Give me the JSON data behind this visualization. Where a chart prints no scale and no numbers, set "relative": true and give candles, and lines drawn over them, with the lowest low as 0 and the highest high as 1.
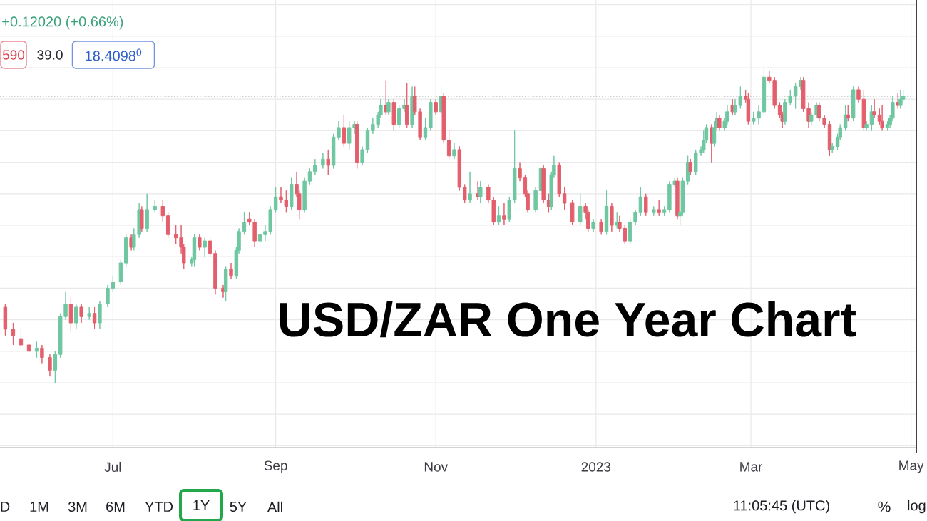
{
  "chart_data": {
    "type": "candlestick",
    "title": "USD/ZAR One Year Chart",
    "relative": true,
    "grid": true,
    "xlim": [
      "2022-05-19",
      "2023-05-03"
    ],
    "xticks": [
      {
        "value": "2022-07-01",
        "label": "Jul"
      },
      {
        "value": "2022-09-01",
        "label": "Sep"
      },
      {
        "value": "2022-11-01",
        "label": "Nov"
      },
      {
        "value": "2023-01-01",
        "label": "2023"
      },
      {
        "value": "2023-03-01",
        "label": "Mar"
      },
      {
        "value": "2023-05-01",
        "label": "May"
      }
    ],
    "x": [
      "2022-05-21",
      "2022-05-24",
      "2022-05-27",
      "2022-05-30",
      "2022-06-02",
      "2022-06-04",
      "2022-06-07",
      "2022-06-09",
      "2022-06-11",
      "2022-06-13",
      "2022-06-15",
      "2022-06-17",
      "2022-06-19",
      "2022-06-22",
      "2022-06-24",
      "2022-06-26",
      "2022-06-29",
      "2022-07-01",
      "2022-07-04",
      "2022-07-06",
      "2022-07-08",
      "2022-07-09",
      "2022-07-11",
      "2022-07-12",
      "2022-07-14",
      "2022-07-17",
      "2022-07-20",
      "2022-07-22",
      "2022-07-25",
      "2022-07-27",
      "2022-07-28",
      "2022-07-31",
      "2022-08-01",
      "2022-08-03",
      "2022-08-05",
      "2022-08-07",
      "2022-08-09",
      "2022-08-12",
      "2022-08-13",
      "2022-08-15",
      "2022-08-17",
      "2022-08-18",
      "2022-08-20",
      "2022-08-22",
      "2022-08-24",
      "2022-08-26",
      "2022-08-28",
      "2022-08-30",
      "2022-09-01",
      "2022-09-03",
      "2022-09-05",
      "2022-09-07",
      "2022-09-09",
      "2022-09-10",
      "2022-09-12",
      "2022-09-14",
      "2022-09-16",
      "2022-09-19",
      "2022-09-21",
      "2022-09-23",
      "2022-09-25",
      "2022-09-27",
      "2022-09-29",
      "2022-10-01",
      "2022-10-02",
      "2022-10-04",
      "2022-10-06",
      "2022-10-08",
      "2022-10-10",
      "2022-10-11",
      "2022-10-13",
      "2022-10-14",
      "2022-10-16",
      "2022-10-18",
      "2022-10-20",
      "2022-10-21",
      "2022-10-23",
      "2022-10-24",
      "2022-10-26",
      "2022-10-28",
      "2022-10-30",
      "2022-11-01",
      "2022-11-03",
      "2022-11-04",
      "2022-11-06",
      "2022-11-08",
      "2022-11-10",
      "2022-11-12",
      "2022-11-14",
      "2022-11-17",
      "2022-11-18",
      "2022-11-21",
      "2022-11-23",
      "2022-11-25",
      "2022-11-27",
      "2022-11-29",
      "2022-12-01",
      "2022-12-03",
      "2022-12-05",
      "2022-12-06",
      "2022-12-09",
      "2022-12-11",
      "2022-12-12",
      "2022-12-14",
      "2022-12-15",
      "2022-12-16",
      "2022-12-18",
      "2022-12-20",
      "2022-12-23",
      "2022-12-26",
      "2022-12-28",
      "2022-12-29",
      "2022-12-31",
      "2023-01-03",
      "2023-01-05",
      "2023-01-07",
      "2023-01-09",
      "2023-01-10",
      "2023-01-12",
      "2023-01-14",
      "2023-01-16",
      "2023-01-18",
      "2023-01-20",
      "2023-01-23",
      "2023-01-25",
      "2023-01-27",
      "2023-01-29",
      "2023-01-31",
      "2023-02-01",
      "2023-02-02",
      "2023-02-03",
      "2023-02-05",
      "2023-02-06",
      "2023-02-08",
      "2023-02-10",
      "2023-02-11",
      "2023-02-12",
      "2023-02-14",
      "2023-02-15",
      "2023-02-16",
      "2023-02-17",
      "2023-02-19",
      "2023-02-20",
      "2023-02-22",
      "2023-02-23",
      "2023-02-25",
      "2023-02-27",
      "2023-02-28",
      "2023-03-02",
      "2023-03-04",
      "2023-03-06",
      "2023-03-08",
      "2023-03-10",
      "2023-03-12",
      "2023-03-13",
      "2023-03-14",
      "2023-03-16",
      "2023-03-18",
      "2023-03-20",
      "2023-03-21",
      "2023-03-23",
      "2023-03-24",
      "2023-03-26",
      "2023-03-27",
      "2023-03-29",
      "2023-03-31",
      "2023-04-01",
      "2023-04-03",
      "2023-04-04",
      "2023-04-06",
      "2023-04-07",
      "2023-04-09",
      "2023-04-11",
      "2023-04-13",
      "2023-04-14",
      "2023-04-16",
      "2023-04-17",
      "2023-04-19",
      "2023-04-20",
      "2023-04-22",
      "2023-04-23",
      "2023-04-24",
      "2023-04-26",
      "2023-04-27",
      "2023-04-28"
    ],
    "ohlc": [
      [
        0.24,
        0.25,
        0.15,
        0.17
      ],
      [
        0.17,
        0.19,
        0.12,
        0.15
      ],
      [
        0.14,
        0.17,
        0.11,
        0.12
      ],
      [
        0.12,
        0.13,
        0.08,
        0.1
      ],
      [
        0.1,
        0.13,
        0.08,
        0.11
      ],
      [
        0.11,
        0.12,
        0.06,
        0.08
      ],
      [
        0.08,
        0.09,
        0.02,
        0.04
      ],
      [
        0.04,
        0.1,
        0,
        0.09
      ],
      [
        0.09,
        0.22,
        0.08,
        0.21
      ],
      [
        0.21,
        0.29,
        0.2,
        0.25
      ],
      [
        0.25,
        0.27,
        0.16,
        0.19
      ],
      [
        0.19,
        0.25,
        0.17,
        0.24
      ],
      [
        0.24,
        0.25,
        0.19,
        0.21
      ],
      [
        0.21,
        0.24,
        0.2,
        0.22
      ],
      [
        0.22,
        0.24,
        0.17,
        0.19
      ],
      [
        0.19,
        0.26,
        0.17,
        0.25
      ],
      [
        0.25,
        0.31,
        0.24,
        0.3
      ],
      [
        0.3,
        0.34,
        0.29,
        0.32
      ],
      [
        0.32,
        0.39,
        0.31,
        0.38
      ],
      [
        0.38,
        0.47,
        0.37,
        0.46
      ],
      [
        0.46,
        0.47,
        0.42,
        0.43
      ],
      [
        0.43,
        0.49,
        0.42,
        0.47
      ],
      [
        0.47,
        0.57,
        0.46,
        0.55
      ],
      [
        0.55,
        0.56,
        0.48,
        0.49
      ],
      [
        0.49,
        0.6,
        0.48,
        0.55
      ],
      [
        0.55,
        0.58,
        0.54,
        0.56
      ],
      [
        0.56,
        0.58,
        0.51,
        0.53
      ],
      [
        0.53,
        0.54,
        0.46,
        0.47
      ],
      [
        0.47,
        0.5,
        0.44,
        0.46
      ],
      [
        0.46,
        0.5,
        0.41,
        0.43
      ],
      [
        0.43,
        0.44,
        0.36,
        0.38
      ],
      [
        0.38,
        0.4,
        0.37,
        0.39
      ],
      [
        0.39,
        0.47,
        0.37,
        0.46
      ],
      [
        0.46,
        0.47,
        0.42,
        0.43
      ],
      [
        0.43,
        0.46,
        0.4,
        0.45
      ],
      [
        0.45,
        0.46,
        0.4,
        0.41
      ],
      [
        0.41,
        0.42,
        0.28,
        0.3
      ],
      [
        0.3,
        0.31,
        0.27,
        0.29
      ],
      [
        0.29,
        0.37,
        0.26,
        0.36
      ],
      [
        0.36,
        0.38,
        0.33,
        0.34
      ],
      [
        0.34,
        0.43,
        0.33,
        0.42
      ],
      [
        0.42,
        0.49,
        0.41,
        0.48
      ],
      [
        0.48,
        0.54,
        0.47,
        0.51
      ],
      [
        0.52,
        0.54,
        0.5,
        0.51
      ],
      [
        0.51,
        0.52,
        0.43,
        0.45
      ],
      [
        0.45,
        0.48,
        0.43,
        0.47
      ],
      [
        0.47,
        0.5,
        0.45,
        0.48
      ],
      [
        0.48,
        0.56,
        0.47,
        0.55
      ],
      [
        0.55,
        0.62,
        0.54,
        0.59
      ],
      [
        0.59,
        0.62,
        0.57,
        0.58
      ],
      [
        0.58,
        0.61,
        0.54,
        0.56
      ],
      [
        0.56,
        0.65,
        0.55,
        0.63
      ],
      [
        0.63,
        0.67,
        0.59,
        0.6
      ],
      [
        0.6,
        0.61,
        0.52,
        0.55
      ],
      [
        0.55,
        0.65,
        0.54,
        0.64
      ],
      [
        0.64,
        0.68,
        0.63,
        0.67
      ],
      [
        0.67,
        0.71,
        0.66,
        0.69
      ],
      [
        0.69,
        0.73,
        0.68,
        0.71
      ],
      [
        0.71,
        0.74,
        0.66,
        0.69
      ],
      [
        0.69,
        0.79,
        0.68,
        0.78
      ],
      [
        0.78,
        0.83,
        0.77,
        0.81
      ],
      [
        0.81,
        0.85,
        0.75,
        0.76
      ],
      [
        0.76,
        0.83,
        0.74,
        0.81
      ],
      [
        0.81,
        0.83,
        0.79,
        0.82
      ],
      [
        0.82,
        0.83,
        0.68,
        0.7
      ],
      [
        0.7,
        0.75,
        0.69,
        0.74
      ],
      [
        0.74,
        0.81,
        0.73,
        0.8
      ],
      [
        0.8,
        0.84,
        0.79,
        0.82
      ],
      [
        0.82,
        0.86,
        0.81,
        0.85
      ],
      [
        0.85,
        0.9,
        0.84,
        0.88
      ],
      [
        0.88,
        0.96,
        0.85,
        0.86
      ],
      [
        0.86,
        0.9,
        0.85,
        0.89
      ],
      [
        0.89,
        0.9,
        0.8,
        0.82
      ],
      [
        0.82,
        0.88,
        0.81,
        0.87
      ],
      [
        0.87,
        0.9,
        0.86,
        0.88
      ],
      [
        0.88,
        0.95,
        0.81,
        0.82
      ],
      [
        0.82,
        0.94,
        0.81,
        0.91
      ],
      [
        0.91,
        0.94,
        0.85,
        0.86
      ],
      [
        0.86,
        0.87,
        0.77,
        0.78
      ],
      [
        0.78,
        0.84,
        0.77,
        0.81
      ],
      [
        0.81,
        0.9,
        0.8,
        0.89
      ],
      [
        0.89,
        0.9,
        0.85,
        0.86
      ],
      [
        0.86,
        0.94,
        0.85,
        0.91
      ],
      [
        0.91,
        0.92,
        0.76,
        0.77
      ],
      [
        0.77,
        0.8,
        0.71,
        0.72
      ],
      [
        0.72,
        0.76,
        0.71,
        0.74
      ],
      [
        0.74,
        0.75,
        0.61,
        0.62
      ],
      [
        0.62,
        0.63,
        0.57,
        0.58
      ],
      [
        0.58,
        0.67,
        0.57,
        0.6
      ],
      [
        0.6,
        0.64,
        0.58,
        0.59
      ],
      [
        0.59,
        0.64,
        0.57,
        0.62
      ],
      [
        0.62,
        0.63,
        0.57,
        0.58
      ],
      [
        0.58,
        0.59,
        0.5,
        0.51
      ],
      [
        0.51,
        0.56,
        0.5,
        0.53
      ],
      [
        0.53,
        0.57,
        0.5,
        0.52
      ],
      [
        0.52,
        0.59,
        0.51,
        0.58
      ],
      [
        0.58,
        0.8,
        0.57,
        0.68
      ],
      [
        0.68,
        0.7,
        0.64,
        0.65
      ],
      [
        0.65,
        0.66,
        0.59,
        0.6
      ],
      [
        0.6,
        0.61,
        0.54,
        0.55
      ],
      [
        0.55,
        0.62,
        0.54,
        0.61
      ],
      [
        0.61,
        0.73,
        0.6,
        0.68
      ],
      [
        0.68,
        0.69,
        0.57,
        0.58
      ],
      [
        0.58,
        0.6,
        0.54,
        0.56
      ],
      [
        0.56,
        0.67,
        0.55,
        0.66
      ],
      [
        0.66,
        0.72,
        0.65,
        0.69
      ],
      [
        0.69,
        0.7,
        0.59,
        0.6
      ],
      [
        0.6,
        0.62,
        0.55,
        0.57
      ],
      [
        0.57,
        0.58,
        0.5,
        0.51
      ],
      [
        0.51,
        0.6,
        0.5,
        0.56
      ],
      [
        0.56,
        0.57,
        0.52,
        0.54
      ],
      [
        0.54,
        0.55,
        0.48,
        0.49
      ],
      [
        0.49,
        0.52,
        0.48,
        0.51
      ],
      [
        0.51,
        0.52,
        0.47,
        0.48
      ],
      [
        0.48,
        0.61,
        0.47,
        0.56
      ],
      [
        0.56,
        0.57,
        0.48,
        0.5
      ],
      [
        0.5,
        0.54,
        0.49,
        0.51
      ],
      [
        0.51,
        0.53,
        0.48,
        0.49
      ],
      [
        0.49,
        0.5,
        0.44,
        0.45
      ],
      [
        0.45,
        0.52,
        0.44,
        0.51
      ],
      [
        0.51,
        0.55,
        0.5,
        0.54
      ],
      [
        0.54,
        0.62,
        0.53,
        0.59
      ],
      [
        0.59,
        0.6,
        0.53,
        0.54
      ],
      [
        0.54,
        0.56,
        0.53,
        0.55
      ],
      [
        0.55,
        0.58,
        0.53,
        0.54
      ],
      [
        0.54,
        0.56,
        0.53,
        0.55
      ],
      [
        0.55,
        0.64,
        0.54,
        0.63
      ],
      [
        0.63,
        0.65,
        0.62,
        0.64
      ],
      [
        0.64,
        0.65,
        0.52,
        0.53
      ],
      [
        0.53,
        0.55,
        0.5,
        0.54
      ],
      [
        0.54,
        0.65,
        0.53,
        0.64
      ],
      [
        0.64,
        0.72,
        0.63,
        0.7
      ],
      [
        0.7,
        0.71,
        0.66,
        0.67
      ],
      [
        0.67,
        0.74,
        0.66,
        0.73
      ],
      [
        0.73,
        0.75,
        0.72,
        0.74
      ],
      [
        0.74,
        0.8,
        0.73,
        0.77
      ],
      [
        0.77,
        0.82,
        0.76,
        0.81
      ],
      [
        0.81,
        0.82,
        0.7,
        0.76
      ],
      [
        0.76,
        0.83,
        0.75,
        0.81
      ],
      [
        0.81,
        0.86,
        0.8,
        0.84
      ],
      [
        0.84,
        0.85,
        0.8,
        0.81
      ],
      [
        0.81,
        0.84,
        0.8,
        0.83
      ],
      [
        0.83,
        0.88,
        0.82,
        0.86
      ],
      [
        0.88,
        0.9,
        0.85,
        0.86
      ],
      [
        0.86,
        0.9,
        0.85,
        0.88
      ],
      [
        0.88,
        0.94,
        0.87,
        0.91
      ],
      [
        0.91,
        0.93,
        0.89,
        0.9
      ],
      [
        0.9,
        0.92,
        0.82,
        0.83
      ],
      [
        0.83,
        0.86,
        0.82,
        0.84
      ],
      [
        0.84,
        0.88,
        0.82,
        0.86
      ],
      [
        0.86,
        1,
        0.85,
        0.97
      ],
      [
        0.97,
        0.99,
        0.95,
        0.96
      ],
      [
        0.96,
        0.97,
        0.87,
        0.88
      ],
      [
        0.88,
        0.89,
        0.84,
        0.85
      ],
      [
        0.85,
        0.86,
        0.81,
        0.83
      ],
      [
        0.83,
        0.9,
        0.82,
        0.89
      ],
      [
        0.89,
        0.93,
        0.88,
        0.91
      ],
      [
        0.91,
        0.95,
        0.87,
        0.94
      ],
      [
        0.94,
        0.97,
        0.93,
        0.96
      ],
      [
        0.96,
        0.97,
        0.86,
        0.87
      ],
      [
        0.87,
        0.89,
        0.81,
        0.83
      ],
      [
        0.83,
        0.86,
        0.82,
        0.85
      ],
      [
        0.85,
        0.89,
        0.84,
        0.88
      ],
      [
        0.88,
        0.89,
        0.83,
        0.84
      ],
      [
        0.84,
        0.85,
        0.81,
        0.82
      ],
      [
        0.82,
        0.83,
        0.72,
        0.74
      ],
      [
        0.74,
        0.76,
        0.73,
        0.75
      ],
      [
        0.75,
        0.79,
        0.74,
        0.78
      ],
      [
        0.78,
        0.82,
        0.77,
        0.81
      ],
      [
        0.81,
        0.88,
        0.8,
        0.85
      ],
      [
        0.85,
        0.88,
        0.83,
        0.84
      ],
      [
        0.84,
        0.94,
        0.83,
        0.93
      ],
      [
        0.93,
        0.94,
        0.89,
        0.9
      ],
      [
        0.9,
        0.93,
        0.8,
        0.81
      ],
      [
        0.81,
        0.83,
        0.8,
        0.82
      ],
      [
        0.82,
        0.88,
        0.8,
        0.86
      ],
      [
        0.86,
        0.9,
        0.84,
        0.85
      ],
      [
        0.85,
        0.87,
        0.82,
        0.83
      ],
      [
        0.83,
        0.88,
        0.8,
        0.81
      ],
      [
        0.81,
        0.83,
        0.8,
        0.82
      ],
      [
        0.82,
        0.85,
        0.81,
        0.84
      ],
      [
        0.84,
        0.91,
        0.83,
        0.89
      ],
      [
        0.89,
        0.92,
        0.87,
        0.88
      ],
      [
        0.88,
        0.93,
        0.87,
        0.9
      ],
      [
        0.9,
        0.93,
        0.89,
        0.91
      ]
    ],
    "colors": [
      "#e35f6c",
      "#e35f6c",
      "#e35f6c",
      "#e35f6c",
      "#6fc7a1",
      "#e35f6c",
      "#e35f6c",
      "#6fc7a1",
      "#6fc7a1",
      "#6fc7a1",
      "#e35f6c",
      "#6fc7a1",
      "#e35f6c",
      "#6fc7a1",
      "#e35f6c",
      "#6fc7a1",
      "#6fc7a1",
      "#6fc7a1",
      "#6fc7a1",
      "#6fc7a1",
      "#e35f6c",
      "#6fc7a1",
      "#6fc7a1",
      "#e35f6c",
      "#6fc7a1",
      "#6fc7a1",
      "#e35f6c",
      "#e35f6c",
      "#e35f6c",
      "#e35f6c",
      "#e35f6c",
      "#6fc7a1",
      "#6fc7a1",
      "#e35f6c",
      "#6fc7a1",
      "#e35f6c",
      "#e35f6c",
      "#e35f6c",
      "#6fc7a1",
      "#e35f6c",
      "#6fc7a1",
      "#6fc7a1",
      "#6fc7a1",
      "#e35f6c",
      "#e35f6c",
      "#6fc7a1",
      "#6fc7a1",
      "#6fc7a1",
      "#6fc7a1",
      "#e35f6c",
      "#e35f6c",
      "#6fc7a1",
      "#e35f6c",
      "#e35f6c",
      "#6fc7a1",
      "#6fc7a1",
      "#6fc7a1",
      "#6fc7a1",
      "#e35f6c",
      "#6fc7a1",
      "#6fc7a1",
      "#e35f6c",
      "#6fc7a1",
      "#6fc7a1",
      "#e35f6c",
      "#6fc7a1",
      "#6fc7a1",
      "#6fc7a1",
      "#6fc7a1",
      "#6fc7a1",
      "#e35f6c",
      "#6fc7a1",
      "#e35f6c",
      "#6fc7a1",
      "#6fc7a1",
      "#e35f6c",
      "#6fc7a1",
      "#e35f6c",
      "#e35f6c",
      "#6fc7a1",
      "#6fc7a1",
      "#e35f6c",
      "#6fc7a1",
      "#e35f6c",
      "#e35f6c",
      "#6fc7a1",
      "#e35f6c",
      "#e35f6c",
      "#6fc7a1",
      "#e35f6c",
      "#6fc7a1",
      "#e35f6c",
      "#e35f6c",
      "#6fc7a1",
      "#e35f6c",
      "#6fc7a1",
      "#6fc7a1",
      "#e35f6c",
      "#e35f6c",
      "#e35f6c",
      "#6fc7a1",
      "#6fc7a1",
      "#e35f6c",
      "#e35f6c",
      "#6fc7a1",
      "#6fc7a1",
      "#e35f6c",
      "#e35f6c",
      "#e35f6c",
      "#6fc7a1",
      "#e35f6c",
      "#e35f6c",
      "#6fc7a1",
      "#e35f6c",
      "#6fc7a1",
      "#e35f6c",
      "#6fc7a1",
      "#e35f6c",
      "#e35f6c",
      "#6fc7a1",
      "#6fc7a1",
      "#6fc7a1",
      "#e35f6c",
      "#6fc7a1",
      "#e35f6c",
      "#6fc7a1",
      "#6fc7a1",
      "#6fc7a1",
      "#e35f6c",
      "#6fc7a1",
      "#6fc7a1",
      "#6fc7a1",
      "#e35f6c",
      "#6fc7a1",
      "#6fc7a1",
      "#6fc7a1",
      "#6fc7a1",
      "#e35f6c",
      "#6fc7a1",
      "#6fc7a1",
      "#e35f6c",
      "#6fc7a1",
      "#6fc7a1",
      "#e35f6c",
      "#6fc7a1",
      "#6fc7a1",
      "#e35f6c",
      "#e35f6c",
      "#6fc7a1",
      "#6fc7a1",
      "#6fc7a1",
      "#e35f6c",
      "#e35f6c",
      "#e35f6c",
      "#e35f6c",
      "#6fc7a1",
      "#6fc7a1",
      "#6fc7a1",
      "#6fc7a1",
      "#e35f6c",
      "#e35f6c",
      "#6fc7a1",
      "#6fc7a1",
      "#e35f6c",
      "#e35f6c",
      "#e35f6c",
      "#6fc7a1",
      "#6fc7a1",
      "#6fc7a1",
      "#6fc7a1",
      "#e35f6c",
      "#6fc7a1",
      "#e35f6c",
      "#e35f6c",
      "#6fc7a1",
      "#6fc7a1",
      "#e35f6c",
      "#e35f6c",
      "#e35f6c",
      "#6fc7a1",
      "#6fc7a1",
      "#6fc7a1",
      "#e35f6c",
      "#6fc7a1",
      "#6fc7a1"
    ],
    "ref_lines": [
      {
        "axis": "y",
        "value": 0.91,
        "color": "#9aa0a6",
        "line_style": "dotted"
      }
    ],
    "annotations": [
      "+0.12020 (+0.66%)",
      "590",
      "39.0",
      "18.4098$^{0}$",
      "D",
      "1M",
      "3M",
      "6M",
      "YTD",
      "1Y",
      "5Y",
      "All",
      "11:05:45 (UTC)",
      "%",
      "log"
    ]
  }
}
